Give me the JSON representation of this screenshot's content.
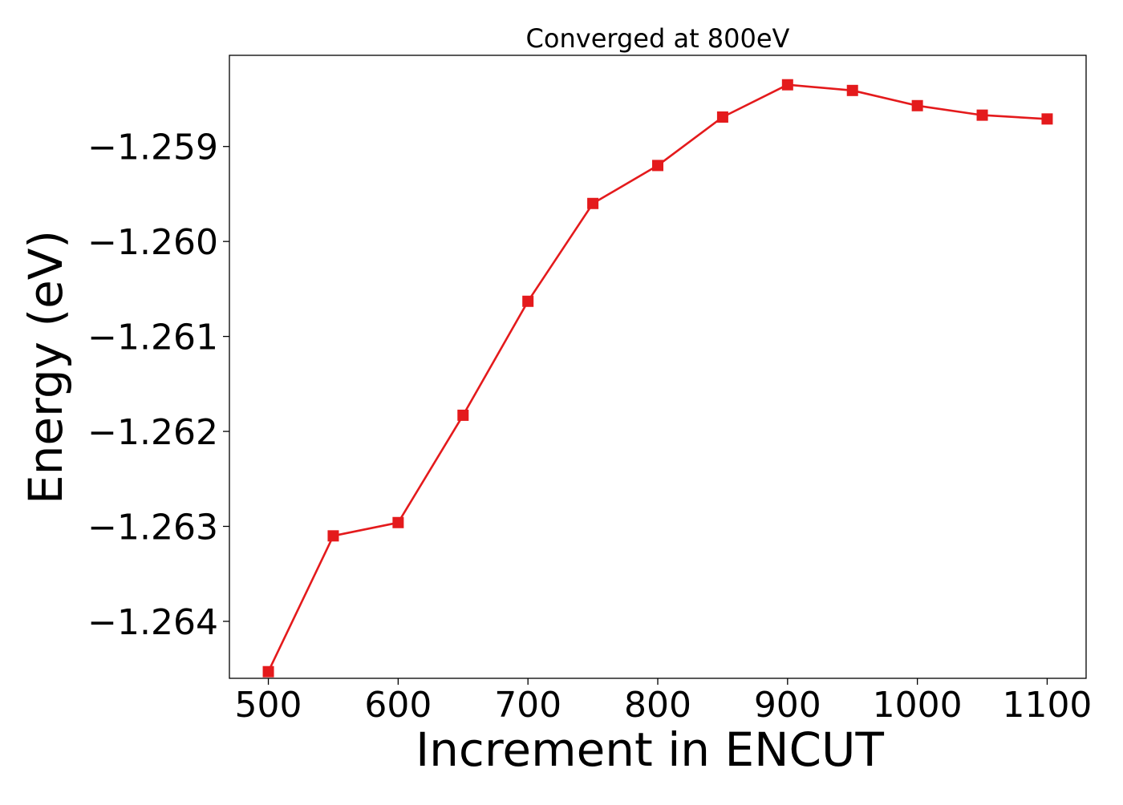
{
  "chart_data": {
    "type": "line",
    "title": "Converged at 800eV",
    "xlabel": "Increment in ENCUT",
    "ylabel": "Energy (eV)",
    "x": [
      500,
      550,
      600,
      650,
      700,
      750,
      800,
      850,
      900,
      950,
      1000,
      1050,
      1100
    ],
    "series": [
      {
        "values": [
          -1.26453,
          -1.2631,
          -1.26296,
          -1.26183,
          -1.26063,
          -1.2596,
          -1.2592,
          -1.25869,
          -1.25835,
          -1.25841,
          -1.25857,
          -1.25867,
          -1.25871
        ],
        "color": "#e41a1c",
        "marker": "square"
      }
    ],
    "xticks": [
      500,
      600,
      700,
      800,
      900,
      1000,
      1100
    ],
    "xtick_labels": [
      "500",
      "600",
      "700",
      "800",
      "900",
      "1000",
      "1100"
    ],
    "yticks": [
      -1.259,
      -1.26,
      -1.261,
      -1.262,
      -1.263,
      -1.264
    ],
    "ytick_labels": [
      "−1.259",
      "−1.260",
      "−1.261",
      "−1.262",
      "−1.263",
      "−1.264"
    ],
    "xlim": [
      470,
      1130
    ],
    "ylim": [
      -1.2646,
      -1.25804
    ],
    "grid": false,
    "legend": "none"
  }
}
